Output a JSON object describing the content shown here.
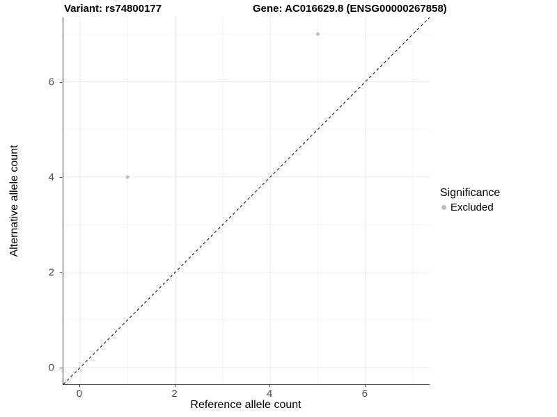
{
  "titles": {
    "variant": "Variant: rs74800177",
    "gene": "Gene: AC016629.8 (ENSG00000267858)"
  },
  "axes": {
    "x_label": "Reference allele count",
    "y_label": "Alternative allele count",
    "x_tick_labels": [
      "0",
      "2",
      "4",
      "6"
    ],
    "y_tick_labels": [
      "0",
      "2",
      "4",
      "6"
    ]
  },
  "legend": {
    "title": "Significance",
    "items": [
      {
        "label": "Excluded",
        "color": "#bdbdbd"
      }
    ]
  },
  "chart_data": {
    "type": "scatter",
    "title": "Variant: rs74800177   Gene: AC016629.8 (ENSG00000267858)",
    "xlabel": "Reference allele count",
    "ylabel": "Alternative allele count",
    "points": [
      {
        "x": 1,
        "y": 4,
        "significance": "Excluded"
      },
      {
        "x": 5,
        "y": 7,
        "significance": "Excluded"
      }
    ],
    "point_color": "#bdbdbd",
    "point_radius": 2.5,
    "xlim": [
      -0.35,
      7.35
    ],
    "ylim": [
      -0.35,
      7.35
    ],
    "x_ticks": [
      0,
      2,
      4,
      6
    ],
    "y_ticks": [
      0,
      2,
      4,
      6
    ],
    "x_minor_ticks": [
      1,
      3,
      5,
      7
    ],
    "y_minor_ticks": [
      1,
      3,
      5,
      7
    ],
    "grid": {
      "major_color": "#e9e9e9",
      "minor_color": "#f4f4f4"
    },
    "reference_line": {
      "type": "identity",
      "style": "dashed",
      "color": "#000000"
    },
    "legend_position": "right",
    "legend_title": "Significance",
    "legend_entries": [
      "Excluded"
    ]
  },
  "colors": {
    "axis_line": "#333333",
    "tick_mark": "#333333",
    "tick_label": "#4d4d4d",
    "background": "#ffffff"
  }
}
